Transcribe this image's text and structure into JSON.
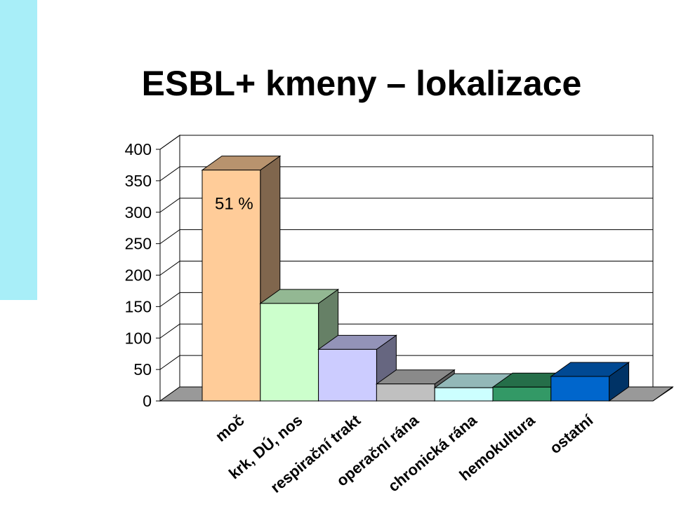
{
  "page": {
    "accent_strip_color": "#a8eef8"
  },
  "chart_data": {
    "type": "bar",
    "title": "ESBL+ kmeny – lokalizace",
    "xlabel": "",
    "ylabel": "",
    "ylim": [
      0,
      400
    ],
    "yticks": [
      "0",
      "50",
      "100",
      "150",
      "200",
      "250",
      "300",
      "350",
      "400"
    ],
    "categories": [
      "moč",
      "krk, DÚ, nos",
      "respirační trakt",
      "operační rána",
      "chronická rána",
      "hemokultura",
      "ostatní"
    ],
    "values": [
      367,
      155,
      82,
      27,
      21,
      22,
      39
    ],
    "colors": [
      "#ffcc99",
      "#ccffcc",
      "#ccccff",
      "#c0c0c0",
      "#ccffff",
      "#339966",
      "#0066cc"
    ],
    "annotations": [
      {
        "text": "51 %",
        "category": "moč"
      }
    ],
    "grid": true,
    "style": "3d"
  }
}
